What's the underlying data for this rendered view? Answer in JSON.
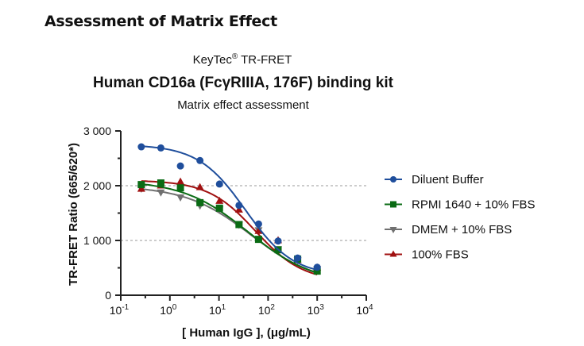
{
  "heading": "Assessment of Matrix Effect",
  "chart_data": {
    "type": "scatter",
    "title_brand": "KeyTec",
    "title_brand_mark": "®",
    "title_brand_suffix": " TR-FRET",
    "title": "Human CD16a (FcγRIIIA, 176F) binding kit",
    "subtitle": "Matrix effect assessment",
    "xlabel": "[ Human IgG ],  (μg/mL)",
    "ylabel": "TR-FRET Ratio (665/620*)",
    "xscale": "log",
    "xlim": [
      0.1,
      10000
    ],
    "ylim": [
      0,
      3000
    ],
    "xticks": [
      {
        "base": "10",
        "exp": "-1"
      },
      {
        "base": "10",
        "exp": "0"
      },
      {
        "base": "10",
        "exp": "1"
      },
      {
        "base": "10",
        "exp": "2"
      },
      {
        "base": "10",
        "exp": "3"
      },
      {
        "base": "10",
        "exp": "4"
      }
    ],
    "yticks": [
      {
        "v": 0,
        "label": "0"
      },
      {
        "v": 1000,
        "label": "1 000"
      },
      {
        "v": 2000,
        "label": "2 000"
      },
      {
        "v": 3000,
        "label": "3 000"
      }
    ],
    "gridlines_y": [
      1000,
      2000
    ],
    "legend_position": "right",
    "x": [
      0.262,
      0.655,
      1.64,
      4.1,
      10.24,
      25.6,
      64,
      160,
      400,
      1000
    ],
    "series": [
      {
        "name": "Diluent Buffer",
        "color": "#1f4e9c",
        "marker": "circle",
        "values": [
          2710,
          2690,
          2360,
          2460,
          2030,
          1640,
          1300,
          990,
          680,
          510
        ],
        "fit": {
          "top": 2750,
          "bottom": 350,
          "ec50": 35,
          "hill": 0.9
        }
      },
      {
        "name": "RPMI 1640 + 10% FBS",
        "color": "#0a6b14",
        "marker": "square",
        "values": [
          2020,
          2050,
          1960,
          1690,
          1590,
          1290,
          1020,
          830,
          660,
          440
        ],
        "fit": {
          "top": 2100,
          "bottom": 200,
          "ec50": 40,
          "hill": 0.65
        }
      },
      {
        "name": "DMEM + 10% FBS",
        "color": "#707070",
        "marker": "triangle-down",
        "values": [
          1950,
          1880,
          1790,
          1640,
          1570,
          1290,
          1190,
          840,
          640,
          480
        ],
        "fit": {
          "top": 2000,
          "bottom": 200,
          "ec50": 45,
          "hill": 0.65
        }
      },
      {
        "name": "100% FBS",
        "color": "#a01010",
        "marker": "triangle-up",
        "values": [
          1940,
          2000,
          2070,
          1970,
          1720,
          1560,
          1170,
          1000,
          640,
          500
        ],
        "fit": {
          "top": 2100,
          "bottom": 250,
          "ec50": 55,
          "hill": 0.9
        }
      }
    ]
  }
}
